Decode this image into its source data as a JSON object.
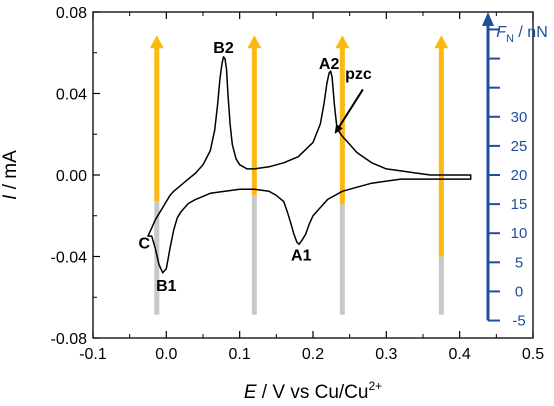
{
  "chart_data": {
    "type": "line",
    "xlabel": {
      "var": "E",
      "rest": " / V vs Cu/Cu",
      "sup": "2+"
    },
    "ylabel": {
      "var": "I",
      "rest": " / mA"
    },
    "y2label": {
      "var": "F",
      "sub": "N",
      "rest": " / nN"
    },
    "xlim": [
      -0.1,
      0.5
    ],
    "ylim": [
      -0.08,
      0.08
    ],
    "y2lim": [
      -8,
      48
    ],
    "x_ticks": [
      -0.1,
      0.0,
      0.1,
      0.2,
      0.3,
      0.4,
      0.5
    ],
    "x_tick_labels": [
      "-0.1",
      "0.0",
      "0.1",
      "0.2",
      "0.3",
      "0.4",
      "0.5"
    ],
    "y_ticks": [
      -0.08,
      -0.04,
      0.0,
      0.04,
      0.08
    ],
    "y_tick_labels": [
      "-0.08",
      "-0.04",
      "0.00",
      "0.04",
      "0.08"
    ],
    "y2_ticks": [
      -5,
      0,
      5,
      10,
      15,
      20,
      25,
      30
    ],
    "y2_tick_labels": [
      "-5",
      "0",
      "5",
      "10",
      "15",
      "20",
      "25",
      "30"
    ],
    "y2_extra_ticks": [
      35,
      40,
      45
    ],
    "series": [
      {
        "x": [
          -0.025,
          -0.02,
          -0.015,
          -0.01,
          -0.005,
          0.0,
          0.005,
          0.01,
          0.02,
          0.03,
          0.04,
          0.05,
          0.06,
          0.066,
          0.07,
          0.073,
          0.076,
          0.078,
          0.08,
          0.082,
          0.084,
          0.087,
          0.09,
          0.095,
          0.1,
          0.11,
          0.12,
          0.14,
          0.16,
          0.18,
          0.2,
          0.21,
          0.215,
          0.219,
          0.222,
          0.224,
          0.226,
          0.229,
          0.232,
          0.236,
          0.24,
          0.25,
          0.26,
          0.28,
          0.3,
          0.32,
          0.34,
          0.36,
          0.38,
          0.4,
          0.415,
          0.415,
          0.4,
          0.38,
          0.36,
          0.34,
          0.32,
          0.3,
          0.28,
          0.26,
          0.24,
          0.23,
          0.22,
          0.21,
          0.2,
          0.195,
          0.19,
          0.185,
          0.181,
          0.178,
          0.174,
          0.17,
          0.165,
          0.16,
          0.15,
          0.14,
          0.12,
          0.1,
          0.08,
          0.06,
          0.04,
          0.03,
          0.02,
          0.015,
          0.01,
          0.005,
          0.0,
          -0.005,
          -0.01,
          -0.015,
          -0.02,
          -0.025
        ],
        "y": [
          -0.03,
          -0.026,
          -0.022,
          -0.019,
          -0.016,
          -0.013,
          -0.01,
          -0.008,
          -0.005,
          -0.002,
          0.001,
          0.005,
          0.012,
          0.022,
          0.035,
          0.047,
          0.055,
          0.058,
          0.057,
          0.052,
          0.04,
          0.025,
          0.015,
          0.008,
          0.005,
          0.003,
          0.003,
          0.004,
          0.006,
          0.009,
          0.016,
          0.025,
          0.035,
          0.045,
          0.05,
          0.051,
          0.048,
          0.035,
          0.025,
          0.021,
          0.019,
          0.015,
          0.011,
          0.006,
          0.003,
          0.002,
          0.001,
          0.0,
          0.0,
          0.0,
          0.0,
          -0.002,
          -0.002,
          -0.002,
          -0.002,
          -0.002,
          -0.002,
          -0.003,
          -0.004,
          -0.006,
          -0.008,
          -0.01,
          -0.012,
          -0.016,
          -0.02,
          -0.024,
          -0.029,
          -0.032,
          -0.034,
          -0.033,
          -0.029,
          -0.024,
          -0.018,
          -0.013,
          -0.01,
          -0.008,
          -0.007,
          -0.007,
          -0.008,
          -0.009,
          -0.012,
          -0.014,
          -0.018,
          -0.021,
          -0.027,
          -0.036,
          -0.046,
          -0.048,
          -0.044,
          -0.036,
          -0.03,
          -0.03
        ]
      }
    ],
    "force_bars": [
      {
        "x": -0.013,
        "gray_top": 15.5,
        "arrow_top": 44
      },
      {
        "x": 0.12,
        "gray_top": 16.5,
        "arrow_top": 44
      },
      {
        "x": 0.24,
        "gray_top": 15.0,
        "arrow_top": 44
      },
      {
        "x": 0.375,
        "gray_top": 6.0,
        "arrow_top": 44
      }
    ],
    "bar_base": -4,
    "bar_colors": {
      "gray": "#c8c8c8",
      "arrow": "#fbb911"
    },
    "axis_color_right": "#1f4e9c",
    "annotations": [
      {
        "text": "B2",
        "x": 0.078,
        "y": 0.06
      },
      {
        "text": "A2",
        "x": 0.222,
        "y": 0.052
      },
      {
        "text": "pzc",
        "x": 0.262,
        "y": 0.047
      },
      {
        "text": "C",
        "x": -0.03,
        "y": -0.036
      },
      {
        "text": "B1",
        "x": 0.0,
        "y": -0.057
      },
      {
        "text": "A1",
        "x": 0.184,
        "y": -0.042
      }
    ],
    "pzc_arrow": {
      "from": [
        0.268,
        0.042
      ],
      "to": [
        0.231,
        0.021
      ]
    }
  }
}
